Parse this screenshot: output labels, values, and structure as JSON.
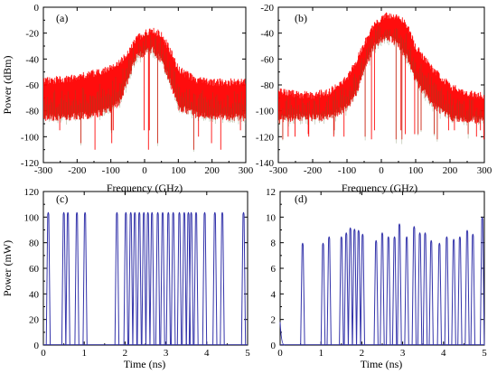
{
  "figure": {
    "colors": {
      "spectrum": "#ff0000",
      "spectrum_dark": "#556b2f",
      "pulses": "#3333aa",
      "axes": "#000000"
    }
  },
  "chart_data": [
    {
      "panel": "(a)",
      "type": "line",
      "xlabel": "Frequency (GHz)",
      "ylabel": "Power (dBm)",
      "xlim": [
        -300,
        300
      ],
      "ylim": [
        -120,
        0
      ],
      "xticks": [
        "-300",
        "-200",
        "-100",
        "0",
        "100",
        "200",
        "300"
      ],
      "yticks": [
        "0",
        "-20",
        "-40",
        "-60",
        "-80",
        "-100",
        "-120"
      ],
      "series": [
        {
          "color": "#ff0000",
          "x": [
            -300,
            -250,
            -200,
            -150,
            -100,
            -75,
            -50,
            -25,
            0,
            25,
            50,
            75,
            100,
            150,
            200,
            250,
            300
          ],
          "upper": [
            -54,
            -53,
            -51,
            -48,
            -44,
            -40,
            -33,
            -22,
            -17,
            -15,
            -18,
            -30,
            -45,
            -53,
            -55,
            -55,
            -55
          ],
          "lower": [
            -88,
            -88,
            -87,
            -86,
            -82,
            -76,
            -60,
            -42,
            -38,
            -36,
            -44,
            -60,
            -80,
            -86,
            -87,
            -88,
            -88
          ],
          "min_spikes": [
            -95,
            -100,
            -105,
            -110,
            -110
          ]
        }
      ]
    },
    {
      "panel": "(b)",
      "type": "line",
      "xlabel": "Frequency (GHz)",
      "ylabel": "",
      "xlim": [
        -300,
        300
      ],
      "ylim": [
        -140,
        -20
      ],
      "xticks": [
        "-300",
        "-200",
        "-100",
        "0",
        "100",
        "200",
        "300"
      ],
      "yticks": [
        "-20",
        "-40",
        "-60",
        "-80",
        "-100",
        "-120",
        "-140"
      ],
      "series": [
        {
          "color": "#ff0000",
          "x": [
            -300,
            -250,
            -200,
            -150,
            -100,
            -75,
            -50,
            -25,
            0,
            25,
            50,
            75,
            100,
            150,
            200,
            250,
            300
          ],
          "upper": [
            -82,
            -84,
            -85,
            -82,
            -72,
            -60,
            -45,
            -33,
            -25,
            -23,
            -24,
            -32,
            -48,
            -65,
            -78,
            -84,
            -85
          ],
          "lower": [
            -110,
            -108,
            -108,
            -108,
            -100,
            -90,
            -72,
            -55,
            -48,
            -47,
            -52,
            -62,
            -80,
            -98,
            -108,
            -110,
            -110
          ],
          "min_spikes": [
            -115,
            -120,
            -122,
            -118
          ]
        }
      ]
    },
    {
      "panel": "(c)",
      "type": "line",
      "xlabel": "Time (ns)",
      "ylabel": "Power (mW)",
      "xlim": [
        0,
        5
      ],
      "ylim": [
        0,
        120
      ],
      "xticks": [
        "0",
        "1",
        "2",
        "3",
        "4",
        "5"
      ],
      "yticks": [
        "0",
        "20",
        "40",
        "60",
        "80",
        "100",
        "120"
      ],
      "series": [
        {
          "color": "#3333aa",
          "pulse_times": [
            0.12,
            0.5,
            0.6,
            0.82,
            1.02,
            1.8,
            2.02,
            2.14,
            2.24,
            2.35,
            2.46,
            2.56,
            2.66,
            2.8,
            2.92,
            3.06,
            3.18,
            3.33,
            3.45,
            3.55,
            3.62,
            3.74,
            3.95,
            4.2,
            4.38,
            4.9
          ],
          "pulse_peaks": [
            104,
            104,
            104,
            104,
            104,
            104,
            104,
            104,
            104,
            104,
            104,
            104,
            104,
            104,
            104,
            104,
            104,
            104,
            104,
            104,
            104,
            104,
            104,
            104,
            104,
            104
          ]
        }
      ]
    },
    {
      "panel": "(d)",
      "type": "line",
      "xlabel": "Time (ns)",
      "ylabel": "",
      "xlim": [
        0,
        5
      ],
      "ylim": [
        0,
        12
      ],
      "xticks": [
        "0",
        "1",
        "2",
        "3",
        "4",
        "5"
      ],
      "yticks": [
        "0",
        "2",
        "4",
        "6",
        "8",
        "10",
        "12"
      ],
      "series": [
        {
          "color": "#3333aa",
          "pulse_times": [
            0.55,
            1.05,
            1.2,
            1.5,
            1.62,
            1.72,
            1.82,
            1.92,
            2.02,
            2.35,
            2.5,
            2.65,
            2.8,
            2.92,
            3.1,
            3.28,
            3.42,
            3.55,
            3.7,
            3.9,
            4.08,
            4.25,
            4.4,
            4.58,
            4.72,
            4.95
          ],
          "pulse_peaks": [
            8.0,
            8.0,
            8.5,
            8.5,
            8.8,
            9.2,
            9.1,
            9.0,
            8.7,
            8.2,
            8.8,
            8.5,
            8.5,
            9.5,
            8.5,
            9.3,
            8.8,
            8.8,
            8.2,
            8.0,
            8.5,
            8.3,
            8.5,
            9.0,
            8.7,
            10.0
          ],
          "initial_level": 1.8
        }
      ]
    }
  ]
}
